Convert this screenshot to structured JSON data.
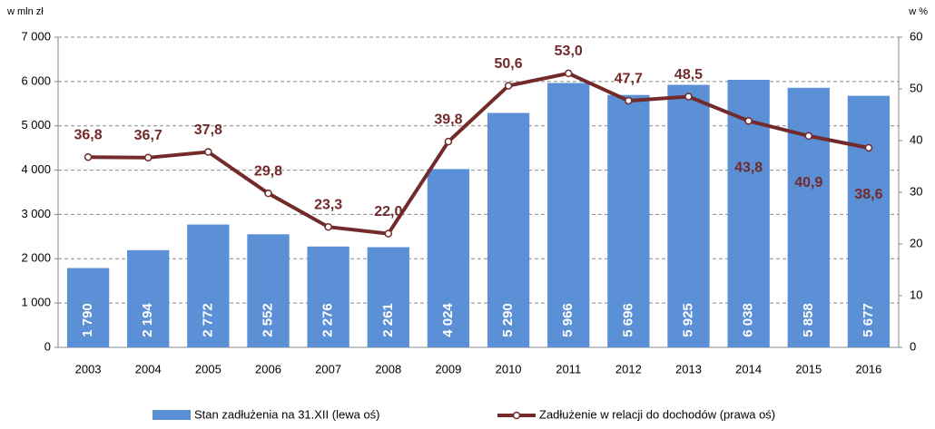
{
  "chart_data": {
    "type": "bar_line",
    "y_label": "w mln zł",
    "y2_label": "w %",
    "categories": [
      "2003",
      "2004",
      "2005",
      "2006",
      "2007",
      "2008",
      "2009",
      "2010",
      "2011",
      "2012",
      "2013",
      "2014",
      "2015",
      "2016"
    ],
    "series": [
      {
        "name": "Stan zadłużenia na 31.XII (lewa oś)",
        "color": "#5b8fd6",
        "type": "bar",
        "values": [
          1790,
          2194,
          2772,
          2552,
          2276,
          2261,
          4024,
          5290,
          5966,
          5696,
          5925,
          6038,
          5858,
          5677
        ],
        "value_labels": [
          "1 790",
          "2 194",
          "2 772",
          "2 552",
          "2 276",
          "2 261",
          "4 024",
          "5 290",
          "5 966",
          "5 696",
          "5 925",
          "6 038",
          "5 858",
          "5 677"
        ]
      },
      {
        "name": "Zadłużenie w relacji do dochodów (prawa oś)",
        "color": "#722a2a",
        "type": "line",
        "axis": "y2",
        "values": [
          36.8,
          36.7,
          37.8,
          29.8,
          23.3,
          22.0,
          39.8,
          50.6,
          53.0,
          47.7,
          48.5,
          43.8,
          40.9,
          38.6
        ],
        "value_labels": [
          "36,8",
          "36,7",
          "37,8",
          "29,8",
          "23,3",
          "22,0",
          "39,8",
          "50,6",
          "53,0",
          "47,7",
          "48,5",
          "43,8",
          "40,9",
          "38,6"
        ]
      }
    ],
    "ylim": [
      0,
      7000
    ],
    "yticks": [
      0,
      {
        "value": 1000,
        "label": "1 000"
      },
      {
        "value": 2000,
        "label": "2 000"
      },
      {
        "value": 3000,
        "label": "3 000"
      },
      {
        "value": 4000,
        "label": "4 000"
      },
      {
        "value": 5000,
        "label": "5 000"
      },
      {
        "value": 6000,
        "label": "6 000"
      },
      {
        "value": 7000,
        "label": "7 000"
      }
    ],
    "y2lim": [
      0,
      60
    ],
    "y2ticks": [
      0,
      10,
      20,
      30,
      40,
      50,
      60
    ],
    "grid": true
  }
}
